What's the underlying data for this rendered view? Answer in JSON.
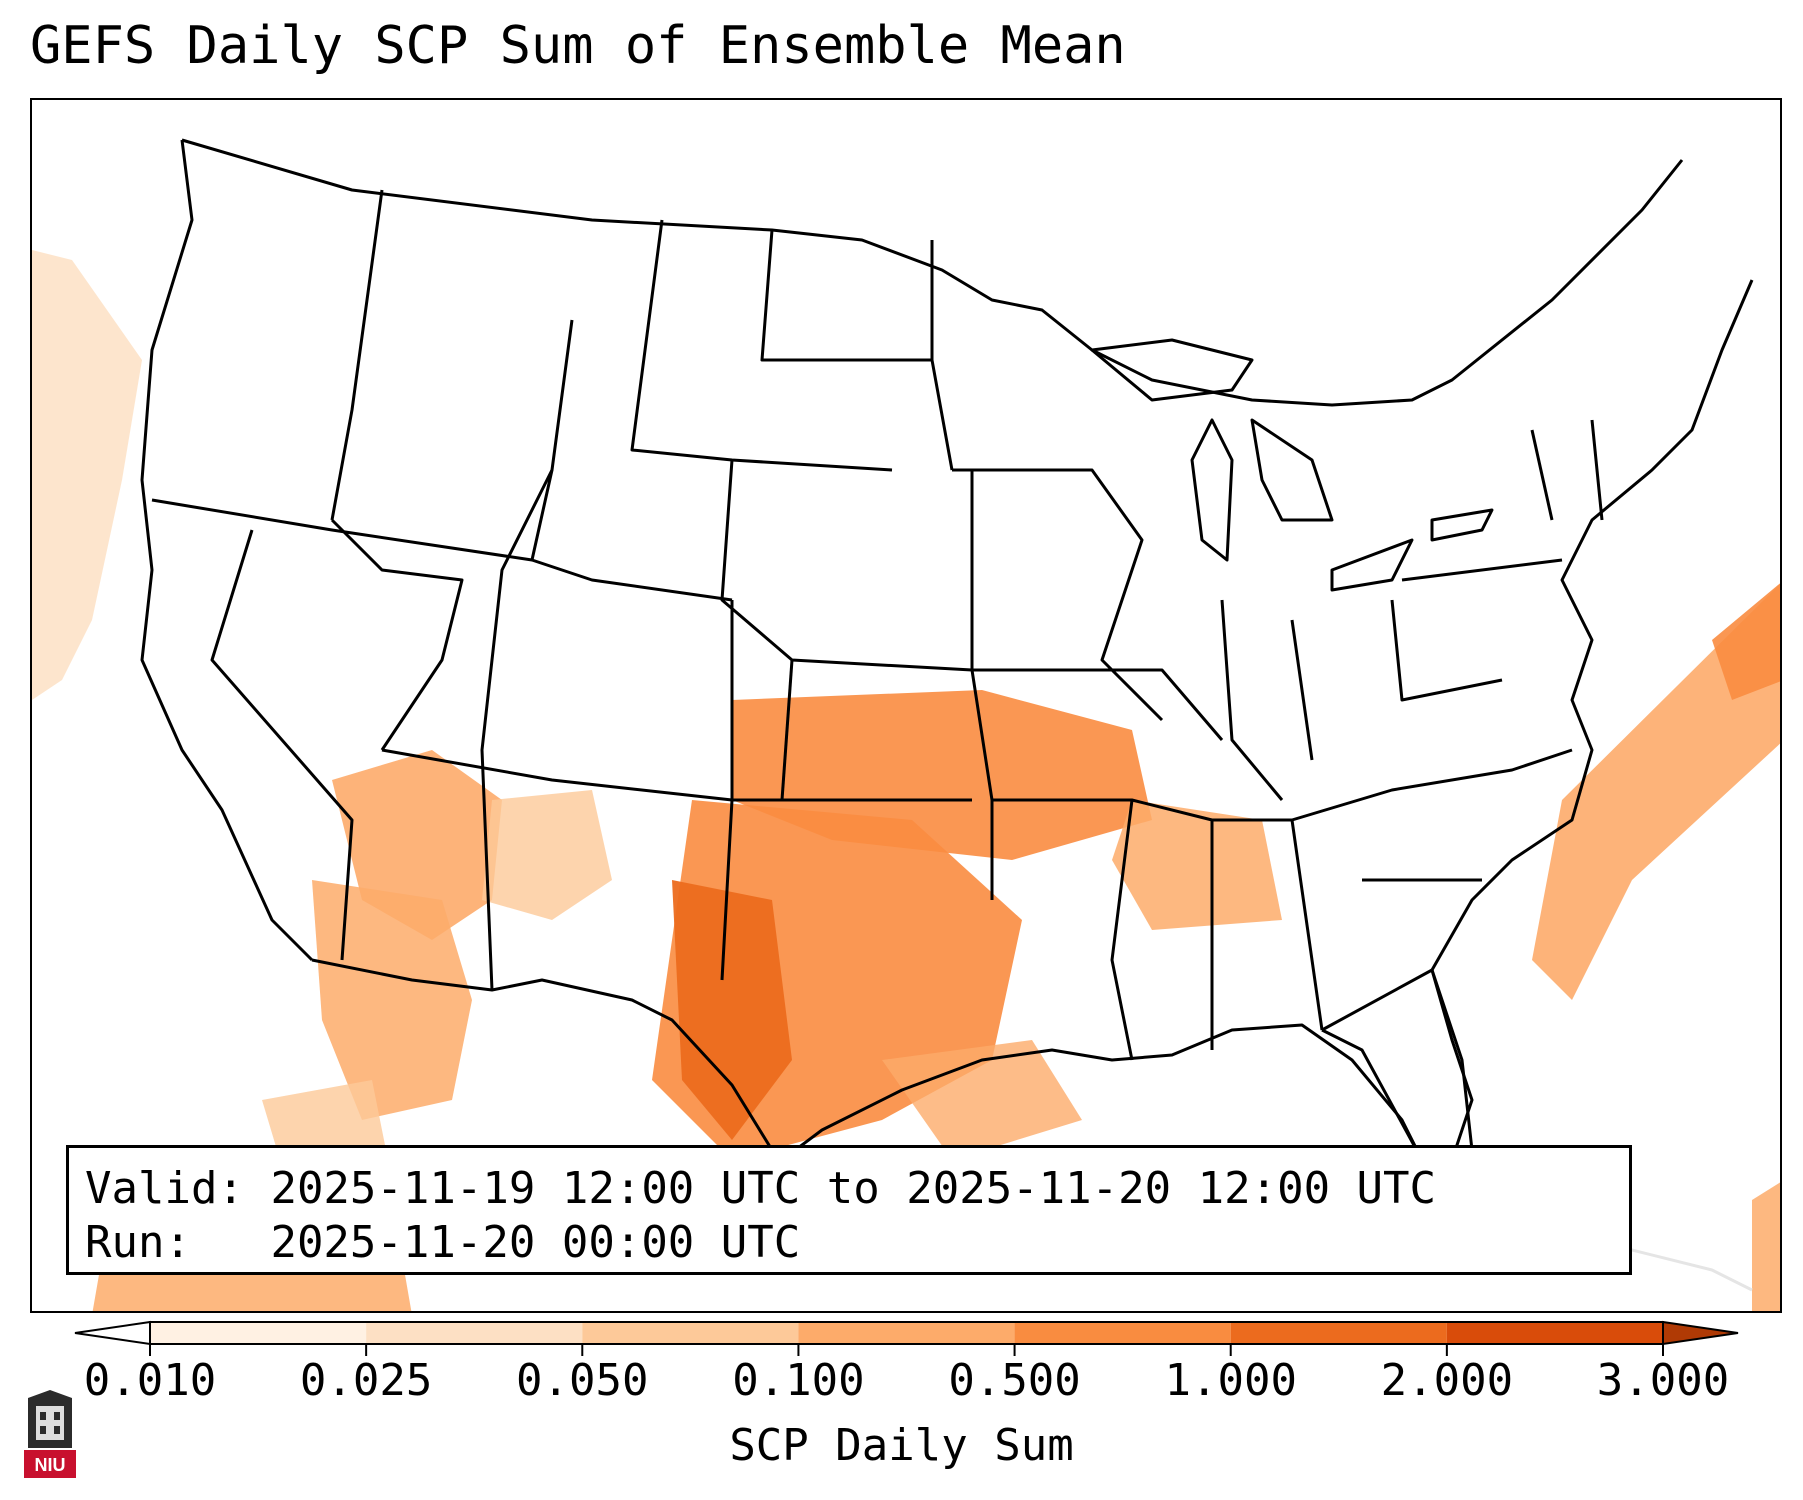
{
  "title": "GEFS Daily SCP Sum of Ensemble Mean",
  "valid_label": "Valid:",
  "valid_value": "2025-11-19 12:00 UTC to 2025-11-20 12:00 UTC",
  "run_label": "Run:",
  "run_value": "2025-11-20 00:00 UTC",
  "colorbar": {
    "label": "SCP Daily Sum",
    "ticks": [
      "0.010",
      "0.025",
      "0.050",
      "0.100",
      "0.500",
      "1.000",
      "2.000",
      "3.000"
    ],
    "colors": [
      "#fff1e3",
      "#fde0c4",
      "#fdc999",
      "#fdab6a",
      "#f98c40",
      "#ec6b1e",
      "#d94c0a"
    ],
    "extend": "both",
    "min_color": "#ffffff",
    "max_color": "#b03a05"
  },
  "logo_text": "NIU",
  "logo_color": "#c8102e",
  "map": {
    "region": "Continental United States",
    "field": "SCP Daily Sum"
  }
}
